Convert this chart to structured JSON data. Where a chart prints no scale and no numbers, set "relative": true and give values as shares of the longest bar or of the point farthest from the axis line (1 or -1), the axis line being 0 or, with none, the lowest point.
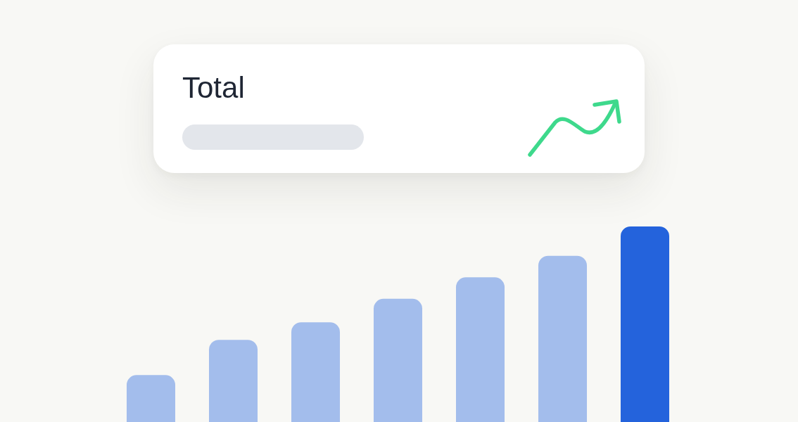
{
  "chart_data": {
    "type": "bar",
    "title": "Total",
    "relative": true,
    "categories": [
      null,
      null,
      null,
      null,
      null,
      null,
      null
    ],
    "values": [
      0.24,
      0.42,
      0.51,
      0.63,
      0.74,
      0.85,
      1
    ],
    "colors": [
      "#a3bdec",
      "#a3bdec",
      "#a3bdec",
      "#a3bdec",
      "#a3bdec",
      "#a3bdec",
      "#2463dc"
    ]
  }
}
